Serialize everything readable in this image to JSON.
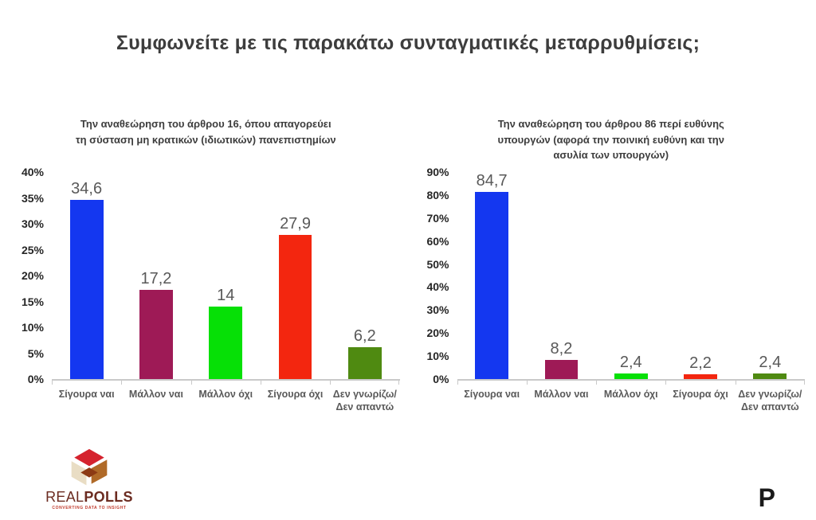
{
  "page": {
    "title": "Συμφωνείτε με τις παρακάτω συνταγματικές μεταρρυθμίσεις;"
  },
  "chart_data": [
    {
      "type": "bar",
      "title": "Την αναθεώρηση του άρθρου 16, όπου απαγορεύει τη σύσταση μη κρατικών (ιδιωτικών) πανεπιστημίων",
      "categories": [
        "Σίγουρα ναι",
        "Μάλλον ναι",
        "Μάλλον όχι",
        "Σίγουρα όχι",
        "Δεν γνωρίζω/ Δεν απαντώ"
      ],
      "values": [
        34.6,
        17.2,
        14,
        27.9,
        6.2
      ],
      "value_labels": [
        "34,6",
        "17,2",
        "14",
        "27,9",
        "6,2"
      ],
      "bar_colors": [
        "#1437f0",
        "#9e1a56",
        "#06e006",
        "#f3260f",
        "#4f8a11"
      ],
      "xlabel": "",
      "ylabel": "",
      "ylim": [
        0,
        40
      ],
      "ytick_step": 5,
      "ytick_labels": [
        "0%",
        "5%",
        "10%",
        "15%",
        "20%",
        "25%",
        "30%",
        "35%",
        "40%"
      ],
      "grid": false,
      "legend": "none"
    },
    {
      "type": "bar",
      "title": "Την αναθεώρηση του άρθρου 86 περί ευθύνης υπουργών (αφορά την ποινική ευθύνη και την ασυλία των υπουργών)",
      "categories": [
        "Σίγουρα ναι",
        "Μάλλον ναι",
        "Μάλλον όχι",
        "Σίγουρα όχι",
        "Δεν γνωρίζω/ Δεν απαντώ"
      ],
      "values": [
        84.7,
        8.2,
        2.4,
        2.2,
        2.4
      ],
      "value_labels": [
        "84,7",
        "8,2",
        "2,4",
        "2,2",
        "2,4"
      ],
      "bar_colors": [
        "#1437f0",
        "#9e1a56",
        "#06e006",
        "#f3260f",
        "#4f8a11"
      ],
      "xlabel": "",
      "ylabel": "",
      "ylim": [
        0,
        90
      ],
      "ytick_step": 10,
      "ytick_labels": [
        "0%",
        "10%",
        "20%",
        "30%",
        "40%",
        "50%",
        "60%",
        "70%",
        "80%",
        "90%"
      ],
      "grid": false,
      "legend": "none"
    }
  ],
  "footer": {
    "brand": {
      "text_light": "REAL",
      "text_bold": "POLLS",
      "tagline": "CONVERTING DATA TO INSIGHT",
      "colors": {
        "cube_red": "#d5232e",
        "cube_brown": "#b06a28",
        "cube_cream": "#e9ddc4",
        "cube_maroon": "#8c3a14",
        "text": "#6b2b20",
        "tagline": "#c0392b"
      }
    },
    "publisher": {
      "letter": "P",
      "letter_color": "#1a1a1a",
      "dot_color": "#e8211d"
    }
  }
}
